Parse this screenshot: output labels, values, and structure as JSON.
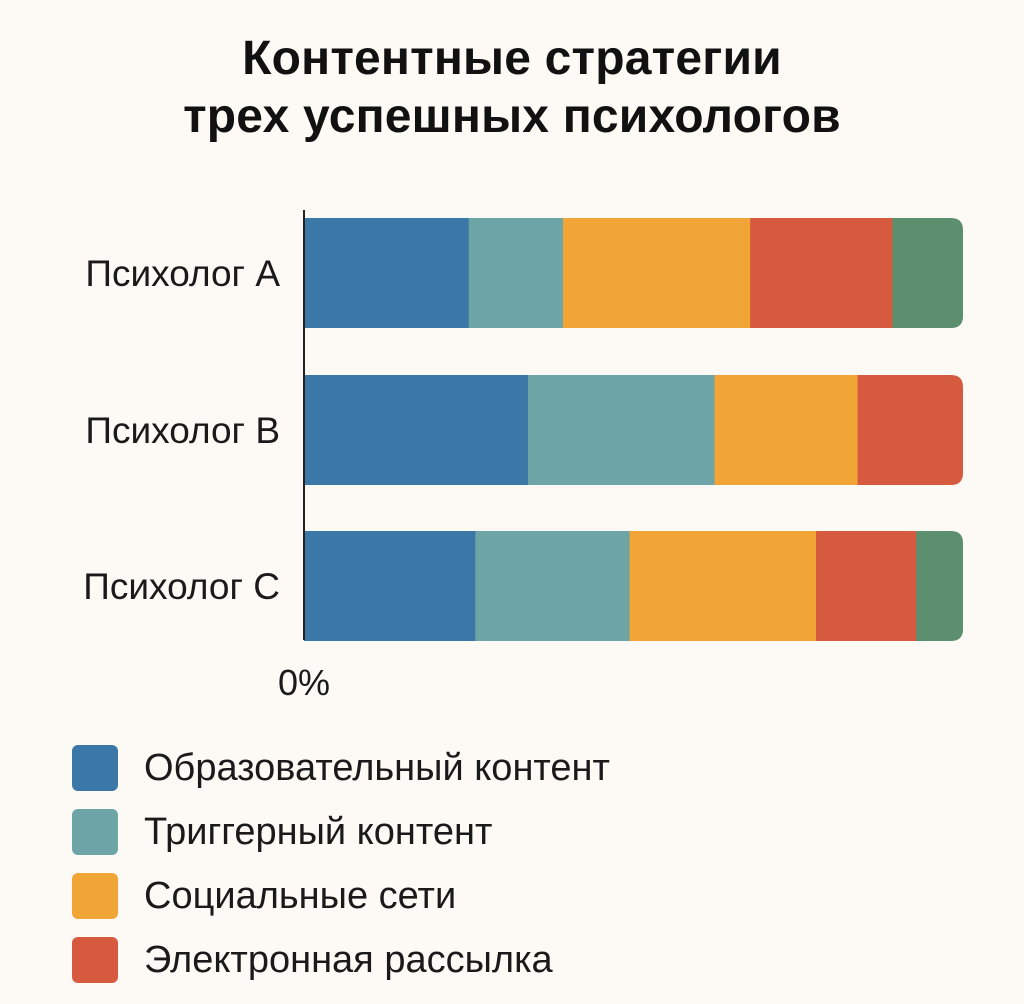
{
  "chart_data": {
    "type": "bar",
    "orientation": "horizontal",
    "stacked": true,
    "title": [
      "Контентные стратегии",
      "трех успешных психологов"
    ],
    "categories": [
      "Психолог A",
      "Психолог B",
      "Психолог C"
    ],
    "x_tick_labels": [
      "0%"
    ],
    "xlim": [
      0,
      100
    ],
    "series": [
      {
        "name": "Образовательный контент",
        "color": "#3b78a8",
        "values": [
          25,
          34,
          26
        ]
      },
      {
        "name": "Триггерный контент",
        "color": "#6da4a6",
        "values": [
          14.3,
          28.3,
          23.4
        ]
      },
      {
        "name": "Социальные сети",
        "color": "#f0a536",
        "values": [
          28.4,
          21.7,
          28.3
        ]
      },
      {
        "name": "Электронная рассылка",
        "color": "#d65b3e",
        "values": [
          21.6,
          16,
          15.2
        ]
      },
      {
        "name": "",
        "color": "#5b8f6d",
        "values": [
          10.7,
          0,
          7.1
        ]
      }
    ],
    "legend_position": "bottom-left",
    "grid": false
  }
}
